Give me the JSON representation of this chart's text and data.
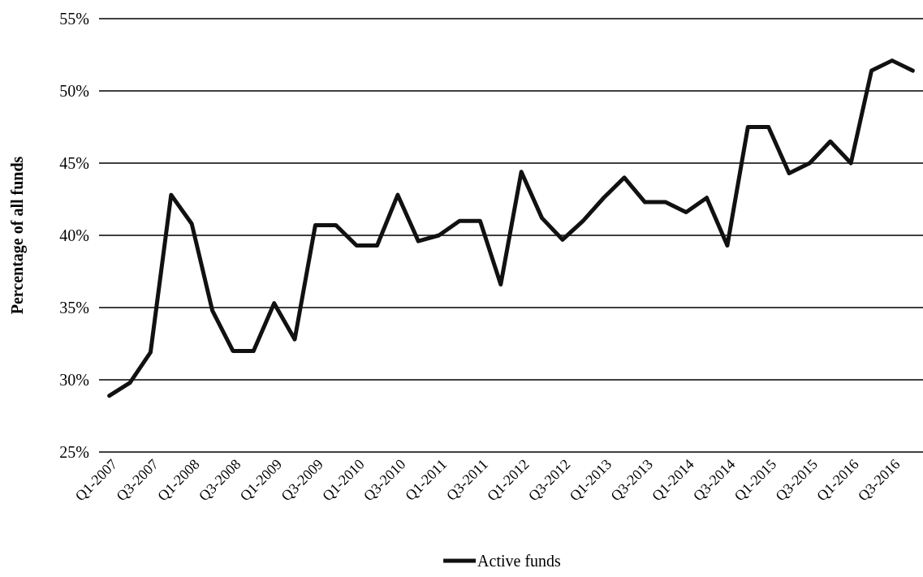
{
  "chart_data": {
    "type": "line",
    "ylabel": "Percentage of all funds",
    "categories": [
      "Q1-2007",
      null,
      "Q3-2007",
      null,
      "Q1-2008",
      null,
      "Q3-2008",
      null,
      "Q1-2009",
      null,
      "Q3-2009",
      null,
      "Q1-2010",
      null,
      "Q3-2010",
      null,
      "Q1-2011",
      null,
      "Q3-2011",
      null,
      "Q1-2012",
      null,
      "Q3-2012",
      null,
      "Q1-2013",
      null,
      "Q3-2013",
      null,
      "Q1-2014",
      null,
      "Q3-2014",
      null,
      "Q1-2015",
      null,
      "Q3-2015",
      null,
      "Q1-2016",
      null,
      "Q3-2016",
      null
    ],
    "series": [
      {
        "name": "Active funds",
        "color": "#111111",
        "values": [
          28.9,
          29.8,
          31.9,
          42.8,
          40.8,
          34.8,
          32.0,
          32.0,
          35.3,
          32.8,
          40.7,
          40.7,
          39.3,
          39.3,
          42.8,
          39.6,
          40.0,
          41.0,
          41.0,
          36.6,
          44.4,
          41.2,
          39.7,
          41.0,
          42.6,
          44.0,
          42.3,
          42.3,
          41.6,
          42.6,
          39.3,
          47.5,
          47.5,
          44.3,
          45.0,
          46.5,
          45.0,
          51.4,
          52.1,
          51.4
        ]
      }
    ],
    "ylim": [
      25,
      55
    ],
    "yticks": [
      {
        "value": 25,
        "label": "25%"
      },
      {
        "value": 30,
        "label": "30%"
      },
      {
        "value": 35,
        "label": "35%"
      },
      {
        "value": 40,
        "label": "40%"
      },
      {
        "value": 45,
        "label": "45%"
      },
      {
        "value": 50,
        "label": "50%"
      },
      {
        "value": 55,
        "label": "55%"
      }
    ],
    "grid": "y",
    "legend": "bottom",
    "line_style": "solid"
  }
}
